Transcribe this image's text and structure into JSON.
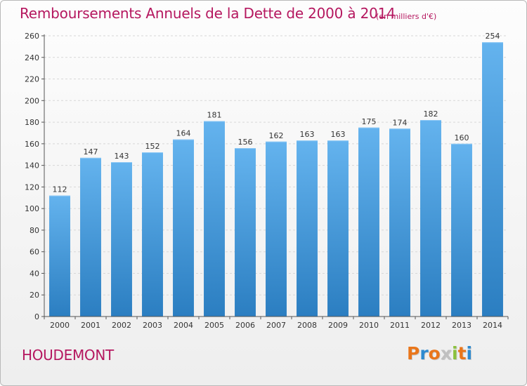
{
  "title": "Remboursements Annuels de la Dette de 2000 à 2014",
  "unit_note": "(en milliers d'€)",
  "location": "HOUDEMONT",
  "logo": {
    "text": "Proxiti",
    "colors": [
      "#e9761b",
      "#2d8ad0",
      "#e9761b",
      "#c0c0c0",
      "#8bc13d",
      "#e9761b",
      "#2d8ad0"
    ]
  },
  "colors": {
    "title": "#b5175f",
    "bar_top": "#64b3ee",
    "bar_bottom": "#2b7ec1",
    "grid": "#d7d7d7"
  },
  "chart_data": {
    "type": "bar",
    "title": "Remboursements Annuels de la Dette de 2000 à 2014",
    "subtitle": "(en milliers d'€)",
    "xlabel": "",
    "ylabel": "",
    "categories": [
      "2000",
      "2001",
      "2002",
      "2003",
      "2004",
      "2005",
      "2006",
      "2007",
      "2008",
      "2009",
      "2010",
      "2011",
      "2012",
      "2013",
      "2014"
    ],
    "values": [
      112,
      147,
      143,
      152,
      164,
      181,
      156,
      162,
      163,
      163,
      175,
      174,
      182,
      160,
      254
    ],
    "ylim": [
      0,
      260
    ],
    "yticks": [
      0,
      20,
      40,
      60,
      80,
      100,
      120,
      140,
      160,
      180,
      200,
      220,
      240,
      260
    ],
    "grid": "horizontal dashed",
    "data_labels": true,
    "legend": "none"
  }
}
